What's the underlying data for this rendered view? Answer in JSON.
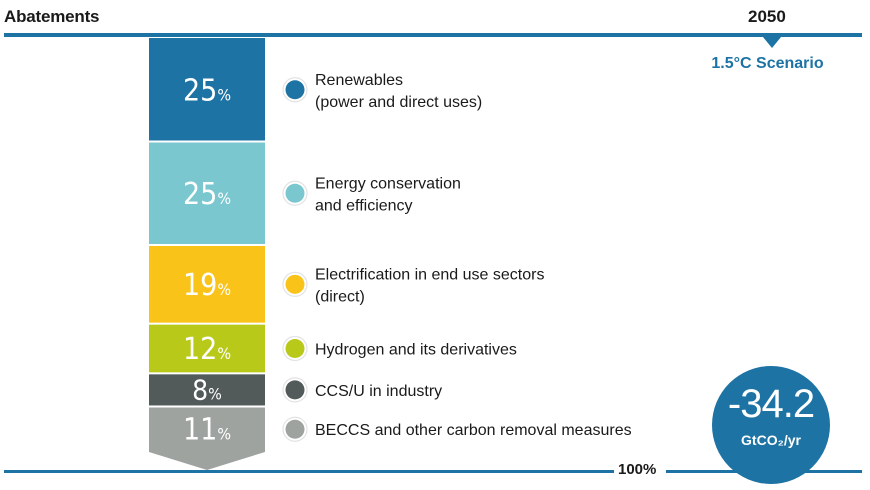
{
  "header": {
    "title": "Abatements",
    "year": "2050"
  },
  "scenario": "1.5°C Scenario",
  "total": {
    "percent": "100%",
    "value": "-34.2",
    "unit": "GtCO₂/yr"
  },
  "chart_data": {
    "type": "bar",
    "stacked": true,
    "orientation": "vertical",
    "total_percent": 100,
    "categories": [
      "Renewables (power and direct uses)",
      "Energy conservation and efficiency",
      "Electrification in end use sectors (direct)",
      "Hydrogen and its derivatives",
      "CCS/U in industry",
      "BECCS and other carbon removal measures"
    ],
    "values": [
      25,
      25,
      19,
      12,
      8,
      11
    ],
    "value_labels": [
      "25%",
      "25%",
      "19%",
      "12%",
      "8%",
      "11%"
    ],
    "legend": [
      {
        "line1": "Renewables",
        "line2": "(power and direct uses)",
        "color": "#1d73a4"
      },
      {
        "line1": "Energy conservation",
        "line2": "and efficiency",
        "color": "#7ac7cf"
      },
      {
        "line1": "Electrification in end use sectors",
        "line2": "(direct)",
        "color": "#f9c31a"
      },
      {
        "line1": "Hydrogen and its derivatives",
        "line2": "",
        "color": "#b8c91a"
      },
      {
        "line1": "CCS/U in industry",
        "line2": "",
        "color": "#535a5a"
      },
      {
        "line1": "BECCS and other carbon removal measures",
        "line2": "",
        "color": "#9ea3a0"
      }
    ],
    "legend_placement": "right",
    "grid": false
  }
}
